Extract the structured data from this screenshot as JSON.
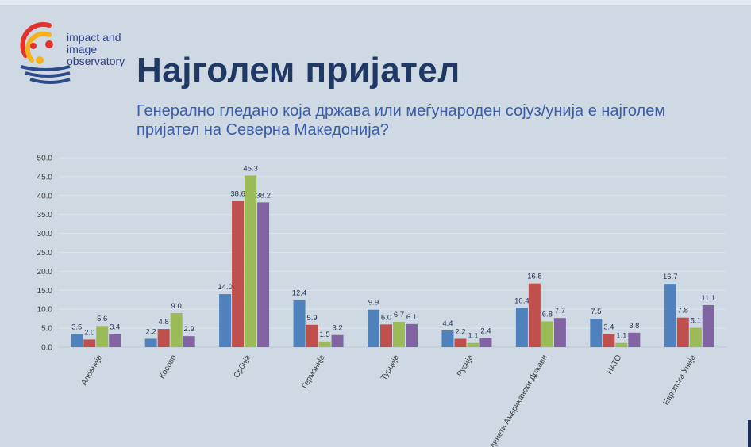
{
  "logo": {
    "lines": [
      "impact and",
      "image",
      "observatory"
    ]
  },
  "title": "Најголем пријател",
  "subtitle": "Генерално гледано која држава или меѓународен сојуз/унија е најголем пријател на Северна Македонија?",
  "colors": {
    "series": [
      "#4f81bd",
      "#c0504d",
      "#9bbb59",
      "#8064a2"
    ]
  },
  "chart_data": {
    "type": "bar",
    "categories": [
      "Албанија",
      "Косово",
      "Србија",
      "Германија",
      "Турција",
      "Русија",
      "Соединети Американски Држави",
      "НАТО",
      "Европска Унија"
    ],
    "series": [
      {
        "values": [
          3.5,
          2.2,
          14.0,
          12.4,
          9.9,
          4.4,
          10.4,
          7.5,
          16.7
        ]
      },
      {
        "values": [
          2.0,
          4.8,
          38.6,
          5.9,
          6.0,
          2.2,
          16.8,
          3.4,
          7.8
        ]
      },
      {
        "values": [
          5.6,
          9.0,
          45.3,
          1.5,
          6.7,
          1.1,
          6.8,
          1.1,
          5.1
        ]
      },
      {
        "values": [
          3.4,
          2.9,
          38.2,
          3.2,
          6.1,
          2.4,
          7.7,
          3.8,
          11.1
        ]
      }
    ],
    "ylim": [
      0,
      50
    ],
    "yticks": [
      "0.0",
      "5.0",
      "10.0",
      "15.0",
      "20.0",
      "25.0",
      "30.0",
      "35.0",
      "40.0",
      "45.0",
      "50.0"
    ],
    "grid": true
  }
}
